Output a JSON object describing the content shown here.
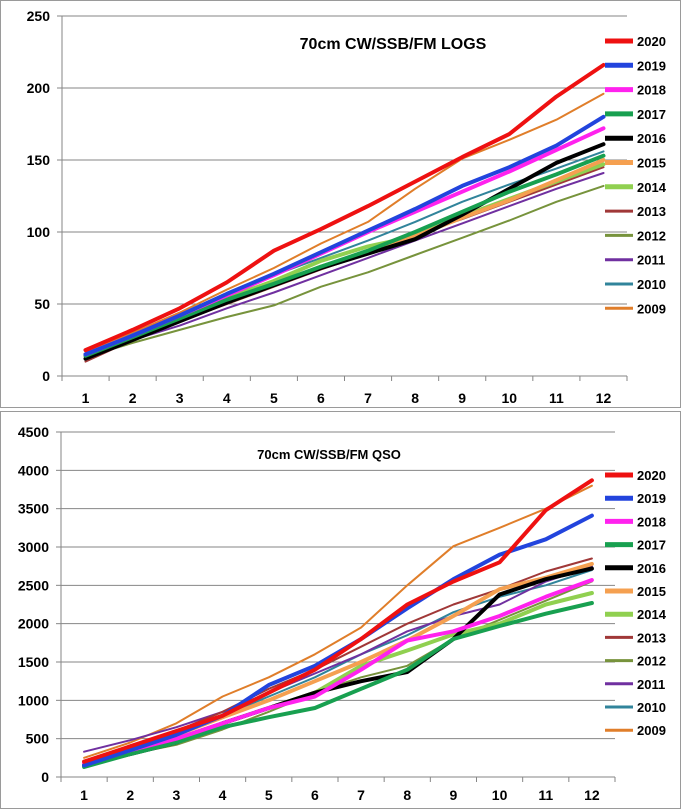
{
  "chart_data": [
    {
      "type": "line",
      "title": "70cm CW/SSB/FM LOGS",
      "xlabel": "",
      "ylabel": "",
      "categories": [
        "1",
        "2",
        "3",
        "4",
        "5",
        "6",
        "7",
        "8",
        "9",
        "10",
        "11",
        "12"
      ],
      "ylim": [
        0,
        250
      ],
      "yticks": [
        0,
        50,
        100,
        150,
        200,
        250
      ],
      "grid": "horizontal",
      "legend": "right",
      "series": [
        {
          "name": "2020",
          "color": "#ee1111",
          "width": 4,
          "values": [
            18,
            32,
            47,
            65,
            87,
            102,
            118,
            135,
            152,
            168,
            194,
            216
          ]
        },
        {
          "name": "2019",
          "color": "#2244dd",
          "width": 4,
          "values": [
            15,
            28,
            42,
            57,
            71,
            86,
            101,
            116,
            132,
            145,
            160,
            180
          ]
        },
        {
          "name": "2018",
          "color": "#ff22ee",
          "width": 4,
          "values": [
            15,
            28,
            42,
            56,
            70,
            85,
            100,
            114,
            128,
            142,
            157,
            172
          ]
        },
        {
          "name": "2017",
          "color": "#18a050",
          "width": 4,
          "values": [
            14,
            27,
            40,
            53,
            64,
            76,
            87,
            100,
            114,
            128,
            140,
            153
          ]
        },
        {
          "name": "2016",
          "color": "#000000",
          "width": 4,
          "values": [
            12,
            25,
            38,
            51,
            63,
            75,
            85,
            95,
            112,
            130,
            148,
            161
          ]
        },
        {
          "name": "2015",
          "color": "#f5a050",
          "width": 4,
          "values": [
            14,
            26,
            39,
            51,
            63,
            76,
            86,
            97,
            110,
            122,
            136,
            150
          ]
        },
        {
          "name": "2014",
          "color": "#90d050",
          "width": 4,
          "values": [
            15,
            28,
            41,
            54,
            66,
            80,
            90,
            97,
            111,
            123,
            135,
            147
          ]
        },
        {
          "name": "2013",
          "color": "#a03838",
          "width": 2,
          "values": [
            10,
            25,
            38,
            50,
            62,
            74,
            85,
            98,
            109,
            121,
            133,
            145
          ]
        },
        {
          "name": "2012",
          "color": "#77933c",
          "width": 2,
          "values": [
            13,
            23,
            32,
            41,
            49,
            62,
            72,
            84,
            96,
            108,
            121,
            132
          ]
        },
        {
          "name": "2011",
          "color": "#7030a0",
          "width": 2,
          "values": [
            14,
            25,
            35,
            47,
            58,
            70,
            82,
            94,
            106,
            118,
            130,
            141
          ]
        },
        {
          "name": "2010",
          "color": "#31849b",
          "width": 2,
          "values": [
            15,
            29,
            42,
            57,
            70,
            82,
            94,
            107,
            121,
            133,
            144,
            156
          ]
        },
        {
          "name": "2009",
          "color": "#e07e2a",
          "width": 2,
          "values": [
            16,
            30,
            44,
            60,
            75,
            92,
            107,
            130,
            151,
            164,
            178,
            196
          ]
        }
      ]
    },
    {
      "type": "line",
      "title": "70cm CW/SSB/FM QSO",
      "xlabel": "",
      "ylabel": "",
      "categories": [
        "1",
        "2",
        "3",
        "4",
        "5",
        "6",
        "7",
        "8",
        "9",
        "10",
        "11",
        "12"
      ],
      "ylim": [
        0,
        4500
      ],
      "yticks": [
        0,
        500,
        1000,
        1500,
        2000,
        2500,
        3000,
        3500,
        4000,
        4500
      ],
      "grid": "horizontal",
      "legend": "right",
      "series": [
        {
          "name": "2020",
          "color": "#ee1111",
          "width": 4,
          "values": [
            200,
            400,
            600,
            800,
            1100,
            1400,
            1800,
            2250,
            2550,
            2800,
            3480,
            3870
          ]
        },
        {
          "name": "2019",
          "color": "#2244dd",
          "width": 4,
          "values": [
            150,
            350,
            550,
            800,
            1200,
            1450,
            1800,
            2200,
            2580,
            2900,
            3100,
            3410
          ]
        },
        {
          "name": "2018",
          "color": "#ff22ee",
          "width": 4,
          "values": [
            180,
            350,
            500,
            700,
            900,
            1050,
            1400,
            1780,
            1900,
            2100,
            2350,
            2570
          ]
        },
        {
          "name": "2017",
          "color": "#18a050",
          "width": 4,
          "values": [
            130,
            300,
            450,
            650,
            780,
            900,
            1150,
            1400,
            1800,
            1970,
            2130,
            2270
          ]
        },
        {
          "name": "2016",
          "color": "#000000",
          "width": 4,
          "values": [
            150,
            300,
            450,
            700,
            900,
            1100,
            1250,
            1370,
            1800,
            2380,
            2580,
            2720
          ]
        },
        {
          "name": "2015",
          "color": "#f5a050",
          "width": 4,
          "values": [
            200,
            380,
            550,
            780,
            1000,
            1250,
            1500,
            1780,
            2100,
            2450,
            2600,
            2780
          ]
        },
        {
          "name": "2014",
          "color": "#90d050",
          "width": 4,
          "values": [
            170,
            330,
            500,
            700,
            900,
            1100,
            1450,
            1650,
            1860,
            2000,
            2250,
            2400
          ]
        },
        {
          "name": "2013",
          "color": "#a03838",
          "width": 2,
          "values": [
            150,
            350,
            600,
            850,
            1150,
            1400,
            1700,
            2000,
            2250,
            2450,
            2680,
            2850
          ]
        },
        {
          "name": "2012",
          "color": "#77933c",
          "width": 2,
          "values": [
            150,
            300,
            420,
            620,
            850,
            1100,
            1300,
            1450,
            1800,
            2050,
            2300,
            2550
          ]
        },
        {
          "name": "2011",
          "color": "#7030a0",
          "width": 2,
          "values": [
            330,
            480,
            650,
            850,
            1100,
            1350,
            1600,
            1900,
            2100,
            2250,
            2550,
            2750
          ]
        },
        {
          "name": "2010",
          "color": "#31849b",
          "width": 2,
          "values": [
            150,
            350,
            550,
            800,
            1050,
            1300,
            1600,
            1850,
            2150,
            2350,
            2500,
            2700
          ]
        },
        {
          "name": "2009",
          "color": "#e07e2a",
          "width": 2,
          "values": [
            250,
            450,
            700,
            1050,
            1300,
            1600,
            1950,
            2500,
            3010,
            3250,
            3500,
            3800
          ]
        }
      ]
    }
  ]
}
